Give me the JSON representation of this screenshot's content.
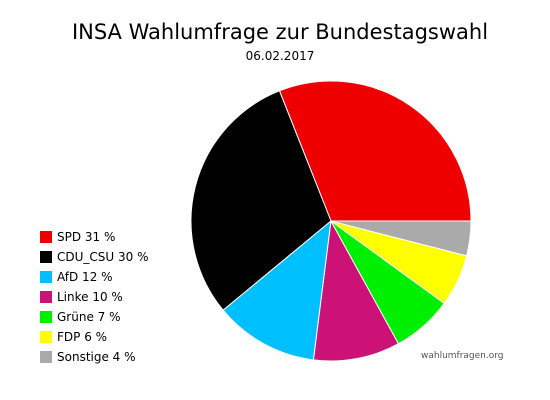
{
  "header": {
    "title": "INSA Wahlumfrage zur Bundestagswahl",
    "date": "06.02.2017"
  },
  "watermark": "wahlumfragen.org",
  "chart_data": {
    "type": "pie",
    "title": "INSA Wahlumfrage zur Bundestagswahl",
    "subtitle": "06.02.2017",
    "legend_position": "left",
    "slices": [
      {
        "label": "SPD",
        "value": 31,
        "legend": "SPD 31 %",
        "color": "#ee0000"
      },
      {
        "label": "CDU_CSU",
        "value": 30,
        "legend": "CDU_CSU 30 %",
        "color": "#000000"
      },
      {
        "label": "AfD",
        "value": 12,
        "legend": "AfD 12 %",
        "color": "#00bfff"
      },
      {
        "label": "Linke",
        "value": 10,
        "legend": "Linke 10 %",
        "color": "#cc1177"
      },
      {
        "label": "Grüne",
        "value": 7,
        "legend": "Grüne 7 %",
        "color": "#00ee00"
      },
      {
        "label": "FDP",
        "value": 6,
        "legend": "FDP 6 %",
        "color": "#ffff00"
      },
      {
        "label": "Sonstige",
        "value": 4,
        "legend": "Sonstige 4 %",
        "color": "#aaaaaa"
      }
    ]
  }
}
